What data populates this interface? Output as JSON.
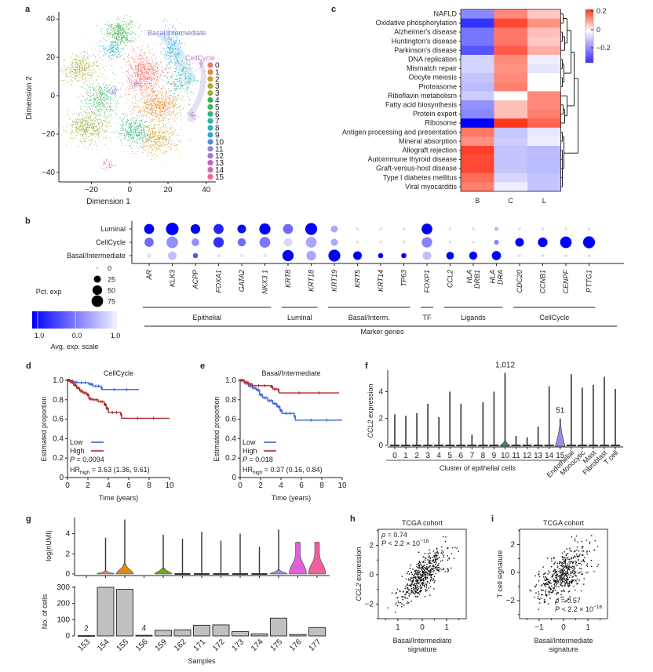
{
  "figure": {
    "panel_labels": [
      "a",
      "b",
      "c",
      "d",
      "e",
      "f",
      "g",
      "h",
      "i"
    ]
  },
  "chart_data": [
    {
      "id": "a",
      "type": "scatter",
      "title": "",
      "xlabel": "Dimension 1",
      "ylabel": "Dimension 2",
      "xlim": [
        -37,
        45
      ],
      "ylim": [
        -45,
        45
      ],
      "xticks": [
        -20,
        0,
        20,
        40
      ],
      "yticks": [
        40,
        20,
        0,
        -20,
        -40
      ],
      "annotations": [
        {
          "text": "Basal/intermediate",
          "color": "#7b6fc9"
        },
        {
          "text": "CellCycle",
          "color": "#c27fc9"
        }
      ],
      "legend": {
        "placement": "right",
        "entries": [
          "0",
          "1",
          "2",
          "3",
          "3",
          "4",
          "5",
          "6",
          "7",
          "8",
          "9",
          "10",
          "11",
          "12",
          "13",
          "14",
          "15"
        ],
        "colors": [
          "#f2766d",
          "#e08b2f",
          "#d1a12b",
          "#b0a82f",
          "#93b23c",
          "#3fac4a",
          "#3db561",
          "#31b27f",
          "#2fb59c",
          "#2bb1c1",
          "#2aa6dc",
          "#4c8fe2",
          "#8a85d8",
          "#a874c8",
          "#c466b3",
          "#dd63a4",
          "#f2659a"
        ]
      },
      "clusters": [
        {
          "id": "0",
          "center": [
            7,
            12
          ],
          "spread": [
            6,
            7
          ],
          "n": 700,
          "color": "#f2766d"
        },
        {
          "id": "1",
          "center": [
            15,
            -5
          ],
          "spread": [
            7,
            5
          ],
          "n": 550,
          "color": "#e08b2f"
        },
        {
          "id": "2",
          "center": [
            14,
            -22
          ],
          "spread": [
            6,
            5
          ],
          "n": 400,
          "color": "#d1a12b"
        },
        {
          "id": "3",
          "center": [
            -26,
            14
          ],
          "spread": [
            6,
            4
          ],
          "n": 350,
          "color": "#b0a82f"
        },
        {
          "id": "3b",
          "center": [
            -22,
            -16
          ],
          "spread": [
            7,
            5
          ],
          "n": 450,
          "color": "#93b23c"
        },
        {
          "id": "4",
          "center": [
            -5,
            33
          ],
          "spread": [
            5,
            4
          ],
          "n": 350,
          "color": "#3fac4a"
        },
        {
          "id": "5",
          "center": [
            -16,
            -2
          ],
          "spread": [
            5,
            6
          ],
          "n": 350,
          "color": "#3db561"
        },
        {
          "id": "6",
          "center": [
            2,
            -18
          ],
          "spread": [
            5,
            5
          ],
          "n": 350,
          "color": "#31b27f"
        },
        {
          "id": "7",
          "center": [
            26,
            8
          ],
          "spread": [
            5,
            6
          ],
          "n": 250,
          "color": "#2fb59c"
        },
        {
          "id": "8",
          "center": [
            -9,
            24
          ],
          "spread": [
            4,
            3
          ],
          "n": 150,
          "color": "#2bb1c1"
        },
        {
          "id": "9",
          "center": [
            22,
            24
          ],
          "spread": [
            3,
            7
          ],
          "n": 200,
          "color": "#2aa6dc"
        },
        {
          "id": "10",
          "center": [
            3,
            6
          ],
          "spread": [
            2,
            1
          ],
          "n": 40,
          "color": "#8a85d8"
        },
        {
          "id": "11",
          "center": [
            -9,
            2
          ],
          "spread": [
            2,
            2
          ],
          "n": 50,
          "color": "#8a85d8"
        },
        {
          "id": "12",
          "center": [
            33,
            -11
          ],
          "spread": [
            1.5,
            2
          ],
          "n": 40,
          "color": "#a874c8"
        },
        {
          "id": "13",
          "center": [
            -12,
            -36
          ],
          "spread": [
            2,
            1.5
          ],
          "n": 40,
          "color": "#c466b3"
        },
        {
          "id": "14",
          "center": [
            37,
            17
          ],
          "spread": [
            1,
            2
          ],
          "n": 20,
          "color": "#c466b3"
        }
      ]
    },
    {
      "id": "b",
      "type": "dot",
      "rows": [
        "Luminal",
        "CellCycle",
        "Basal/Intermediate"
      ],
      "genes": [
        "AR",
        "KLK3",
        "ACPP",
        "FOXA1",
        "GATA2",
        "NKX3 1",
        "KRT8",
        "KRT18",
        "KRT19",
        "KRT5",
        "KRT14",
        "TP63",
        "FOXP1",
        "CCL2",
        "HLA DRB1",
        "HLA DRA",
        "CDC20",
        "CCNB1",
        "CENPF",
        "PTTG1"
      ],
      "pct_exp": [
        [
          55,
          90,
          50,
          55,
          40,
          70,
          55,
          80,
          25,
          2,
          2,
          2,
          65,
          2,
          2,
          8,
          2,
          2,
          2,
          2
        ],
        [
          45,
          75,
          30,
          60,
          35,
          65,
          40,
          65,
          25,
          2,
          2,
          2,
          60,
          2,
          2,
          10,
          40,
          50,
          75,
          80
        ],
        [
          12,
          40,
          12,
          2,
          5,
          5,
          70,
          50,
          80,
          40,
          12,
          12,
          40,
          30,
          35,
          45,
          2,
          2,
          2,
          2
        ]
      ],
      "avg_exp_scale": [
        [
          1.0,
          1.0,
          1.0,
          0.7,
          0.9,
          1.0,
          0.1,
          1.0,
          -0.4,
          -1,
          -1,
          -1,
          1.0,
          -1,
          -1,
          -0.6,
          -1,
          -1,
          -1,
          -1
        ],
        [
          0.1,
          -0.2,
          -0.2,
          0.6,
          0.1,
          0.0,
          -0.8,
          -0.4,
          -0.4,
          -1,
          -1,
          -1,
          -0.1,
          -1,
          -1,
          -0.1,
          1.0,
          1.0,
          1.0,
          1.0
        ],
        [
          -0.9,
          -0.6,
          0.3,
          -1.0,
          -0.9,
          -0.9,
          1.0,
          -0.4,
          1.0,
          1.0,
          1.0,
          1.0,
          -0.6,
          1.0,
          1.0,
          1.0,
          -1,
          -1,
          -1,
          -1
        ]
      ],
      "size_legend": {
        "title": "Pct. exp",
        "values": [
          0,
          25,
          50,
          75
        ]
      },
      "color_legend": {
        "title": "Avg. exp. scale",
        "ticks": [
          "1.0",
          "0.0",
          "1.0"
        ],
        "high": "#0000ff",
        "low": "#f3efff"
      },
      "groups": [
        {
          "label": "Epithelial",
          "from": 0,
          "to": 5
        },
        {
          "label": "Luminal",
          "from": 6,
          "to": 7
        },
        {
          "label": "Basal/Interm.",
          "from": 8,
          "to": 11
        },
        {
          "label": "TF",
          "from": 12,
          "to": 12
        },
        {
          "label": "Ligands",
          "from": 13,
          "to": 15
        },
        {
          "label": "CellCycle",
          "from": 16,
          "to": 19
        }
      ],
      "xlabel": "Marker genes"
    },
    {
      "id": "c",
      "type": "heatmap",
      "rows": [
        "NAFLD",
        "Oxidative phosphorylation",
        "Alzheimer's disease",
        "Huntington's disease",
        "Parkinson's disease",
        "DNA replication",
        "Mismatch repair",
        "Oocyte meiosis",
        "Proteasome",
        "Riboflavin metabolism",
        "Fatty acid biosynthesis",
        "Protein export",
        "Ribosome",
        "Antigen processing and presentation",
        "Mineral absorption",
        "Allograft rejection",
        "Autoimmune thyroid disease",
        "Graft-versus-host disease",
        "Type I diabetes mellitus",
        "Viral myocarditis"
      ],
      "columns": [
        "B",
        "C",
        "L"
      ],
      "values": [
        [
          -0.14,
          0.13,
          0.06
        ],
        [
          -0.24,
          0.2,
          0.12
        ],
        [
          -0.16,
          0.15,
          0.07
        ],
        [
          -0.16,
          0.15,
          0.06
        ],
        [
          -0.2,
          0.18,
          0.09
        ],
        [
          -0.05,
          0.13,
          -0.02
        ],
        [
          -0.05,
          0.12,
          -0.03
        ],
        [
          -0.07,
          0.13,
          0.0
        ],
        [
          -0.08,
          0.14,
          0.0
        ],
        [
          -0.06,
          0.0,
          0.13
        ],
        [
          -0.13,
          0.07,
          0.13
        ],
        [
          -0.14,
          0.07,
          0.14
        ],
        [
          -0.3,
          0.22,
          0.17
        ],
        [
          0.15,
          -0.07,
          -0.03
        ],
        [
          0.12,
          -0.06,
          -0.02
        ],
        [
          0.21,
          -0.07,
          -0.08
        ],
        [
          0.2,
          -0.07,
          -0.08
        ],
        [
          0.2,
          -0.07,
          -0.08
        ],
        [
          0.16,
          -0.05,
          -0.07
        ],
        [
          0.14,
          -0.02,
          -0.07
        ]
      ],
      "colorbar": {
        "ticks": [
          "0.2",
          "0",
          "-0.2"
        ],
        "range": [
          -0.3,
          0.2
        ],
        "low": "#3a2bff",
        "mid": "#ffffff",
        "high": "#ff3a1f"
      }
    },
    {
      "id": "d",
      "type": "line",
      "title": "CellCycle",
      "xlabel": "Time (years)",
      "ylabel": "Estimated proportion",
      "xlim": [
        0,
        10
      ],
      "ylim": [
        0,
        1.0
      ],
      "xticks": [
        0,
        2,
        4,
        6,
        8,
        10
      ],
      "yticks": [
        0,
        0.2,
        0.4,
        0.6,
        0.8,
        1.0
      ],
      "series": [
        {
          "name": "Low",
          "color": "#3a62d6",
          "x": [
            0,
            0.3,
            0.6,
            1.0,
            2.1,
            2.5,
            3.3,
            3.4,
            7.0
          ],
          "y": [
            1.0,
            0.99,
            0.98,
            0.975,
            0.96,
            0.94,
            0.92,
            0.905,
            0.905
          ]
        },
        {
          "name": "High",
          "color": "#b2262e",
          "x": [
            0,
            0.3,
            0.6,
            0.9,
            1.2,
            1.5,
            1.9,
            2.1,
            2.4,
            3.0,
            3.6,
            3.8,
            4.0,
            5.2,
            5.3,
            10.0
          ],
          "y": [
            1.0,
            0.98,
            0.95,
            0.92,
            0.89,
            0.87,
            0.85,
            0.81,
            0.8,
            0.78,
            0.75,
            0.71,
            0.67,
            0.65,
            0.61,
            0.61
          ]
        }
      ],
      "annotations": [
        "P = 0.0094",
        "HR_high = 3.63 (1.36, 9.61)"
      ],
      "legend_placement": "bottom-left"
    },
    {
      "id": "e",
      "type": "line",
      "title": "Basal/Intermediate",
      "xlabel": "Time (years)",
      "ylabel": "Estimated proportion",
      "xlim": [
        0,
        10
      ],
      "ylim": [
        0,
        1.0
      ],
      "xticks": [
        0,
        2,
        4,
        6,
        8,
        10
      ],
      "yticks": [
        0,
        0.2,
        0.4,
        0.6,
        0.8,
        1.0
      ],
      "series": [
        {
          "name": "Low",
          "color": "#3a62d6",
          "x": [
            0,
            0.4,
            0.8,
            1.2,
            1.6,
            1.9,
            2.2,
            2.7,
            3.2,
            3.6,
            3.9,
            4.1,
            5.3,
            5.4,
            10.0
          ],
          "y": [
            1.0,
            0.97,
            0.94,
            0.92,
            0.9,
            0.85,
            0.82,
            0.79,
            0.76,
            0.73,
            0.69,
            0.66,
            0.63,
            0.59,
            0.59
          ]
        },
        {
          "name": "High",
          "color": "#b2262e",
          "x": [
            0,
            0.4,
            0.8,
            1.2,
            3.0,
            3.2,
            3.7,
            3.8,
            9.7
          ],
          "y": [
            1.0,
            0.98,
            0.96,
            0.945,
            0.935,
            0.91,
            0.9,
            0.87,
            0.87
          ]
        }
      ],
      "annotations": [
        "P = 0.018",
        "HR_high = 0.37 (0.16, 0.84)"
      ],
      "legend_placement": "bottom-left"
    },
    {
      "id": "f",
      "type": "violin",
      "ylabel": "CCL2 expression",
      "xlabel": "Cluster of epithelial cells",
      "categories": [
        "0",
        "1",
        "2",
        "3",
        "4",
        "5",
        "6",
        "7",
        "8",
        "9",
        "10",
        "11",
        "12",
        "13",
        "14",
        "15",
        "Endothelial",
        "Monocytic",
        "Mast",
        "Fibroblast",
        "T cell"
      ],
      "max_values": [
        2.3,
        2.2,
        2.4,
        3.1,
        2.1,
        4.0,
        3.1,
        0.8,
        3.2,
        4.0,
        5.4,
        0.7,
        0.6,
        1.4,
        4.4,
        2.0,
        5.3,
        4.3,
        4.5,
        5.1,
        4.2
      ],
      "yticks": [
        0,
        2,
        4
      ],
      "ylim": [
        0,
        5.6
      ],
      "highlight": [
        {
          "category": "10",
          "label": "1,012",
          "color": "#2a8f82",
          "body_height": 0.3
        },
        {
          "category": "15",
          "label": "51",
          "color": "#9c8ce6",
          "body_height": 1.4
        }
      ]
    },
    {
      "id": "g-top",
      "type": "violin",
      "ylabel": "log(nUMI)",
      "categories": [
        "153",
        "154",
        "155",
        "156",
        "159",
        "162",
        "171",
        "172",
        "173",
        "174",
        "175",
        "176",
        "177"
      ],
      "max_values": [
        null,
        3.6,
        5.4,
        null,
        3.9,
        3.5,
        4.2,
        3.3,
        4.0,
        2.7,
        4.4,
        3.1,
        3.1
      ],
      "colors": [
        null,
        "#ef7f7a",
        "#e08b12",
        "#333333",
        "#6eaa22",
        "#333333",
        "#333333",
        "#333333",
        "#333333",
        "#333333",
        "#9c8ce6",
        "#e260d8",
        "#f0609a"
      ],
      "body_height": [
        0,
        0.3,
        1.0,
        0.05,
        0.6,
        0.05,
        0.05,
        0.05,
        0.05,
        0.05,
        0.4,
        3.1,
        3.1
      ],
      "yticks": [
        0,
        2,
        4
      ],
      "ylim": [
        0,
        5.6
      ]
    },
    {
      "id": "g-bottom",
      "type": "bar",
      "xlabel": "Samples",
      "ylabel": "No. of cells",
      "categories": [
        "153",
        "154",
        "155",
        "156",
        "159",
        "162",
        "171",
        "172",
        "173",
        "174",
        "175",
        "176",
        "177"
      ],
      "values": [
        2,
        300,
        288,
        4,
        35,
        38,
        66,
        68,
        27,
        13,
        110,
        9,
        52
      ],
      "data_labels": {
        "153": "2",
        "156": "4"
      },
      "yticks": [
        0,
        100,
        200,
        300
      ],
      "ylim": [
        0,
        310
      ],
      "bar_color": "#c0c0c0"
    },
    {
      "id": "h",
      "type": "scatter",
      "title": "TCGA cohort",
      "xlabel": "Basal/Intermediate signature",
      "ylabel": "CCL2 expression",
      "xticks": [
        -1,
        0,
        1
      ],
      "xtick_labels": [
        "1",
        "0",
        "1"
      ],
      "yticks": [
        -2,
        0,
        2
      ],
      "xlim": [
        -1.8,
        1.8
      ],
      "ylim": [
        -3,
        3.1
      ],
      "rho": 0.74,
      "n_points": 480,
      "annotations": [
        "ρ = 0.74",
        "P < 2.2 × 10^-16"
      ]
    },
    {
      "id": "i",
      "type": "scatter",
      "title": "TCGA cohort",
      "xlabel": "Basal/Intermediate signature",
      "ylabel": "T cell signature",
      "xticks": [
        -1,
        0,
        1
      ],
      "xtick_labels": [
        "−1",
        "0",
        "1"
      ],
      "yticks": [
        -2,
        0,
        2
      ],
      "xlim": [
        -1.8,
        1.8
      ],
      "ylim": [
        -3.3,
        3.1
      ],
      "rho": 0.57,
      "n_points": 480,
      "annotations": [
        "ρ = 0.57",
        "P < 2.2 × 10^-16"
      ]
    }
  ]
}
